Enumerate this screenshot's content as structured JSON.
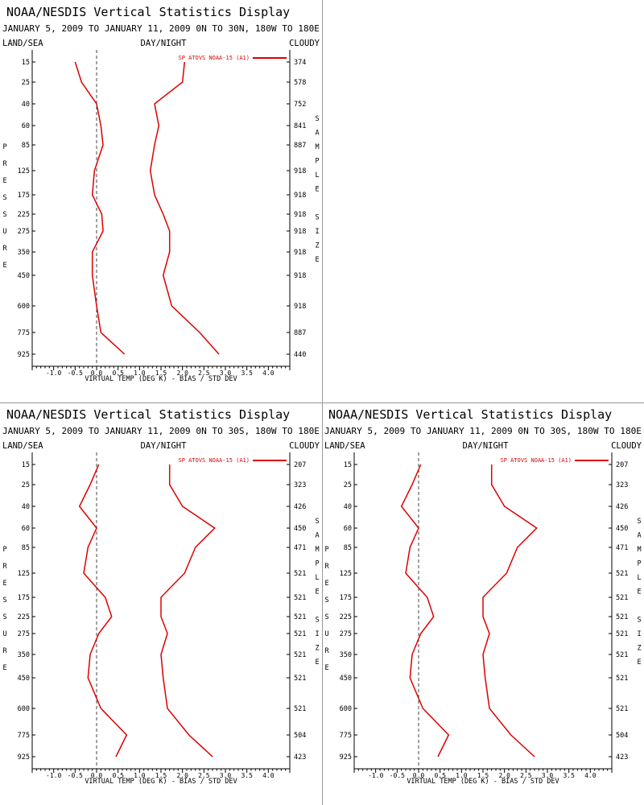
{
  "panel_title": "NOAA/NESDIS Vertical Statistics Display",
  "labels": {
    "land_sea": "LAND/SEA",
    "day_night": "DAY/NIGHT",
    "cloudy": "CLOUDY",
    "left_axis_letters": [
      "P",
      "R",
      "E",
      "S",
      "S",
      "U",
      "R",
      "E"
    ],
    "right_axis_letters": [
      "S",
      "A",
      "M",
      "P",
      "L",
      "E",
      "",
      "S",
      "I",
      "Z",
      "E"
    ],
    "x_axis_label": "VIRTUAL TEMP (DEG K) - BIAS / STD DEV",
    "legend": "SP ATOVS NOAA-15 (A1)"
  },
  "colors": {
    "series": "#dd0000",
    "axis": "#000000",
    "zero_line": "#444444",
    "divider": "#999999"
  },
  "chart_data": [
    {
      "type": "line",
      "subtitle": "JANUARY 5, 2009 TO JANUARY 11, 2009 0N TO 30N, 180W TO 180E",
      "pressure_levels": [
        15,
        25,
        40,
        60,
        85,
        125,
        175,
        225,
        275,
        350,
        450,
        600,
        775,
        925
      ],
      "sample_size": [
        "374",
        "578",
        "752",
        "841",
        "887",
        "918",
        "918",
        "918",
        "918",
        "918",
        "918",
        "918",
        "887",
        "440"
      ],
      "xticks": [
        "-1.0",
        "-0.5",
        "0.0",
        "0.5",
        "1.0",
        "1.5",
        "2.0",
        "2.5",
        "3.0",
        "3.5",
        "4.0"
      ],
      "xlim": [
        -1.5,
        4.5
      ],
      "series": [
        {
          "name": "bias",
          "values": [
            -0.5,
            -0.35,
            0.0,
            0.1,
            0.15,
            -0.05,
            -0.1,
            0.12,
            0.15,
            -0.1,
            -0.1,
            0.0,
            0.1,
            0.65
          ]
        },
        {
          "name": "std_dev",
          "values": [
            2.05,
            2.0,
            1.35,
            1.45,
            1.35,
            1.25,
            1.35,
            1.55,
            1.7,
            1.7,
            1.55,
            1.75,
            2.4,
            2.85
          ]
        }
      ]
    },
    {
      "type": "line",
      "subtitle": "JANUARY 5, 2009 TO JANUARY 11, 2009 0N TO 30S, 180W TO 180E",
      "pressure_levels": [
        15,
        25,
        40,
        60,
        85,
        125,
        175,
        225,
        275,
        350,
        450,
        600,
        775,
        925
      ],
      "sample_size": [
        "207",
        "323",
        "426",
        "450",
        "471",
        "521",
        "521",
        "521",
        "521",
        "521",
        "521",
        "521",
        "504",
        "423"
      ],
      "xticks": [
        "-1.0",
        "-0.5",
        "0.0",
        "0.5",
        "1.0",
        "1.5",
        "2.0",
        "2.5",
        "3.0",
        "3.5",
        "4.0"
      ],
      "xlim": [
        -1.5,
        4.5
      ],
      "series": [
        {
          "name": "bias",
          "values": [
            0.05,
            -0.15,
            -0.4,
            0.0,
            -0.2,
            -0.3,
            0.2,
            0.35,
            0.05,
            -0.15,
            -0.2,
            0.1,
            0.7,
            0.45
          ]
        },
        {
          "name": "std_dev",
          "values": [
            1.7,
            1.7,
            2.0,
            2.75,
            2.3,
            2.05,
            1.5,
            1.5,
            1.65,
            1.5,
            1.55,
            1.65,
            2.15,
            2.7
          ]
        }
      ]
    },
    {
      "type": "line",
      "subtitle": "JANUARY 5, 2009 TO JANUARY 11, 2009 0N TO 30S, 180W TO 180E",
      "pressure_levels": [
        15,
        25,
        40,
        60,
        85,
        125,
        175,
        225,
        275,
        350,
        450,
        600,
        775,
        925
      ],
      "sample_size": [
        "207",
        "323",
        "426",
        "450",
        "471",
        "521",
        "521",
        "521",
        "521",
        "521",
        "521",
        "521",
        "504",
        "423"
      ],
      "xticks": [
        "-1.0",
        "-0.5",
        "0.0",
        "0.5",
        "1.0",
        "1.5",
        "2.0",
        "2.5",
        "3.0",
        "3.5",
        "4.0"
      ],
      "xlim": [
        -1.5,
        4.5
      ],
      "series": [
        {
          "name": "bias",
          "values": [
            0.05,
            -0.15,
            -0.4,
            0.0,
            -0.2,
            -0.3,
            0.2,
            0.35,
            0.05,
            -0.15,
            -0.2,
            0.1,
            0.7,
            0.45
          ]
        },
        {
          "name": "std_dev",
          "values": [
            1.7,
            1.7,
            2.0,
            2.75,
            2.3,
            2.05,
            1.5,
            1.5,
            1.65,
            1.5,
            1.55,
            1.65,
            2.15,
            2.7
          ]
        }
      ]
    }
  ]
}
